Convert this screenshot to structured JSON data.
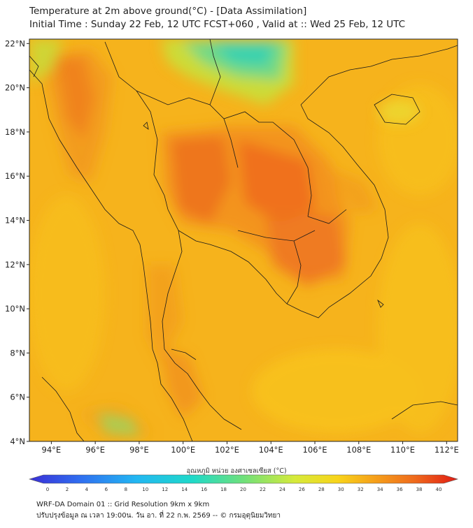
{
  "header": {
    "title_line1": "Temperature at 2m above ground(°C) - [Data Assimilation]",
    "title_line2": "Initial Time : Sunday 22 Feb, 12 UTC FCST+060 , Valid at :: Wed 25 Feb, 12 UTC"
  },
  "map": {
    "lat_labels": [
      "22°N",
      "20°N",
      "18°N",
      "16°N",
      "14°N",
      "12°N",
      "10°N",
      "8°N",
      "6°N",
      "4°N"
    ],
    "lon_labels": [
      "94°E",
      "96°E",
      "98°E",
      "100°E",
      "102°E",
      "104°E",
      "106°E",
      "108°E",
      "110°E",
      "112°E"
    ],
    "lat_values": [
      22,
      20,
      18,
      16,
      14,
      12,
      10,
      8,
      6,
      4
    ],
    "lon_values": [
      94,
      96,
      98,
      100,
      102,
      104,
      106,
      108,
      110,
      112
    ],
    "extent": {
      "lon_min": 93,
      "lon_max": 112.5,
      "lat_min": 4,
      "lat_max": 22.2
    }
  },
  "colorbar": {
    "title": "อุณหภูมิ หน่วย องศาเซลเซียส (°C)",
    "ticks": [
      "0",
      "2",
      "4",
      "6",
      "8",
      "10",
      "12",
      "14",
      "16",
      "18",
      "20",
      "22",
      "24",
      "26",
      "28",
      "30",
      "32",
      "34",
      "36",
      "38",
      "40"
    ],
    "range": [
      0,
      40
    ]
  },
  "footer": {
    "line1": "WRF-DA Domain 01 :: Grid Resolution 9km x 9km",
    "line2": "ปรับปรุงข้อมูล ณ เวลา 19:00น. วัน อา. ที่ 22 ก.พ. 2569 -- © กรมอุตุนิยมวิทยา"
  },
  "colors": {
    "field_base": "#f6b31c",
    "hot": "#ef6a1c",
    "warm": "#f2951c",
    "cool": "#5fd48a",
    "cold": "#2ecfb8",
    "border": "#1a1a1a"
  }
}
